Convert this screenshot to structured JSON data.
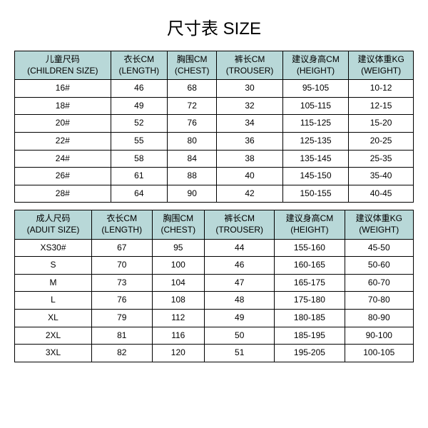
{
  "title": "尺寸表 SIZE",
  "header_bg": "#b8d8d8",
  "border_color": "#000000",
  "children_table": {
    "headers": [
      {
        "cn": "儿童尺码",
        "en": "(CHILDREN SIZE)"
      },
      {
        "cn": "衣长CM",
        "en": "(LENGTH)"
      },
      {
        "cn": "胸围CM",
        "en": "(CHEST)"
      },
      {
        "cn": "裤长CM",
        "en": "(TROUSER)"
      },
      {
        "cn": "建议身高CM",
        "en": "(HEIGHT)"
      },
      {
        "cn": "建议体重KG",
        "en": "(WEIGHT)"
      }
    ],
    "rows": [
      [
        "16#",
        "46",
        "68",
        "30",
        "95-105",
        "10-12"
      ],
      [
        "18#",
        "49",
        "72",
        "32",
        "105-115",
        "12-15"
      ],
      [
        "20#",
        "52",
        "76",
        "34",
        "115-125",
        "15-20"
      ],
      [
        "22#",
        "55",
        "80",
        "36",
        "125-135",
        "20-25"
      ],
      [
        "24#",
        "58",
        "84",
        "38",
        "135-145",
        "25-35"
      ],
      [
        "26#",
        "61",
        "88",
        "40",
        "145-150",
        "35-40"
      ],
      [
        "28#",
        "64",
        "90",
        "42",
        "150-155",
        "40-45"
      ]
    ]
  },
  "adult_table": {
    "headers": [
      {
        "cn": "成人尺码",
        "en": "(ADUIT SIZE)"
      },
      {
        "cn": "衣长CM",
        "en": "(LENGTH)"
      },
      {
        "cn": "胸围CM",
        "en": "(CHEST)"
      },
      {
        "cn": "裤长CM",
        "en": "(TROUSER)"
      },
      {
        "cn": "建议身高CM",
        "en": "(HEIGHT)"
      },
      {
        "cn": "建议体重KG",
        "en": "(WEIGHT)"
      }
    ],
    "rows": [
      [
        "XS30#",
        "67",
        "95",
        "44",
        "155-160",
        "45-50"
      ],
      [
        "S",
        "70",
        "100",
        "46",
        "160-165",
        "50-60"
      ],
      [
        "M",
        "73",
        "104",
        "47",
        "165-175",
        "60-70"
      ],
      [
        "L",
        "76",
        "108",
        "48",
        "175-180",
        "70-80"
      ],
      [
        "XL",
        "79",
        "112",
        "49",
        "180-185",
        "80-90"
      ],
      [
        "2XL",
        "81",
        "116",
        "50",
        "185-195",
        "90-100"
      ],
      [
        "3XL",
        "82",
        "120",
        "51",
        "195-205",
        "100-105"
      ]
    ]
  }
}
